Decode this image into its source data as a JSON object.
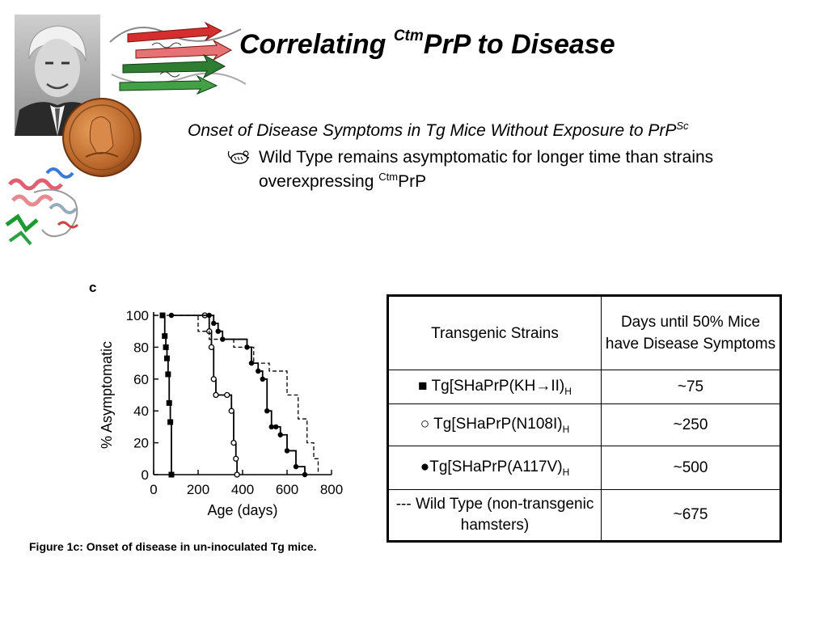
{
  "slide": {
    "title_pre": "Correlating ",
    "title_sup": "Ctm",
    "title_post": "PrP to Disease",
    "subtitle_main": "Onset of Disease Symptoms in Tg Mice Without Exposure to PrP",
    "subtitle_sup": "Sc",
    "bullet_main": "Wild Type remains asymptomatic for longer time than strains overexpressing ",
    "bullet_sup": "Ctm",
    "bullet_post": "PrP",
    "bullet_icon": "mouse-icon",
    "panel_letter": "c",
    "caption": "Figure 1c: Onset of disease in un-inoculated Tg mice."
  },
  "images": {
    "portrait": "portrait-photo",
    "protein_top": "protein-ribbon-structure",
    "medal": "gold-medal",
    "protein_left": "protein-helix-structure"
  },
  "table": {
    "headers": [
      "Transgenic Strains",
      "Days until 50% Mice have Disease Symptoms"
    ],
    "rows": [
      {
        "strain": "■ Tg[SHaPrP(KH→II)",
        "sub": "H",
        "days": "~75"
      },
      {
        "strain": "○ Tg[SHaPrP(N108I)",
        "sub": "H",
        "days": "~250"
      },
      {
        "strain": "●Tg[SHaPrP(A117V)",
        "sub": "H",
        "days": "~500"
      },
      {
        "strain": "--- Wild Type (non-transgenic hamsters)",
        "sub": "",
        "days": "~675"
      }
    ]
  },
  "chart_data": {
    "type": "line",
    "xlabel": "Age (days)",
    "ylabel": "% Asymptomatic",
    "xlim": [
      0,
      800
    ],
    "ylim": [
      0,
      100
    ],
    "xticks": [
      "0",
      "200",
      "400",
      "600",
      "800"
    ],
    "yticks": [
      "0",
      "20",
      "40",
      "60",
      "80",
      "100"
    ],
    "series": [
      {
        "marker": "square",
        "style": "solid",
        "x": [
          40,
          50,
          55,
          60,
          65,
          70,
          75,
          80
        ],
        "y": [
          100,
          87,
          80,
          73,
          63,
          45,
          33,
          0
        ]
      },
      {
        "marker": "open-circle",
        "style": "solid",
        "x": [
          230,
          250,
          260,
          270,
          280,
          330,
          350,
          360,
          370,
          375
        ],
        "y": [
          100,
          90,
          80,
          60,
          50,
          50,
          40,
          20,
          10,
          0
        ]
      },
      {
        "marker": "filled-circle",
        "style": "solid",
        "x": [
          80,
          250,
          270,
          290,
          310,
          420,
          440,
          470,
          490,
          510,
          530,
          550,
          570,
          600,
          640,
          680
        ],
        "y": [
          100,
          100,
          95,
          90,
          85,
          80,
          70,
          65,
          60,
          40,
          30,
          30,
          25,
          15,
          5,
          0
        ]
      },
      {
        "marker": "none",
        "style": "dashed",
        "x": [
          0,
          150,
          200,
          250,
          360,
          430,
          450,
          520,
          560,
          600,
          650,
          690,
          720,
          740
        ],
        "y": [
          100,
          100,
          90,
          85,
          80,
          80,
          70,
          65,
          65,
          50,
          35,
          20,
          10,
          0
        ]
      }
    ]
  }
}
